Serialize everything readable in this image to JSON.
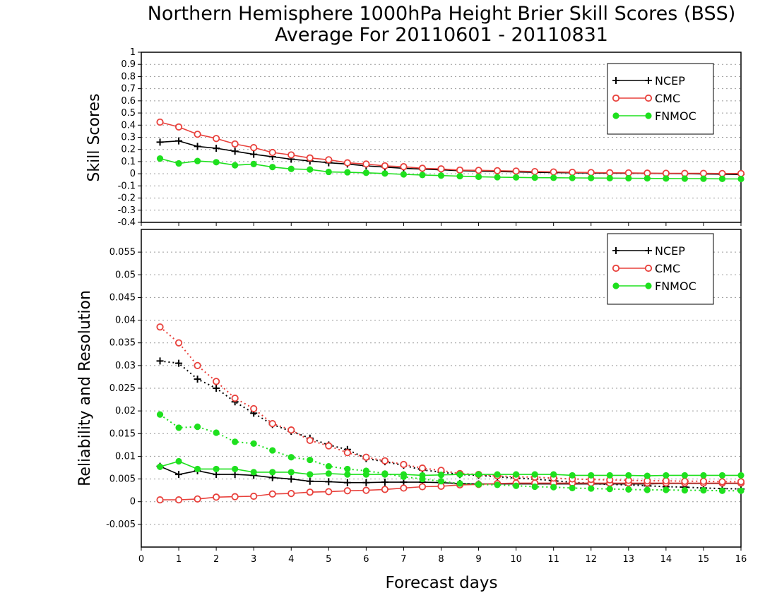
{
  "title_line1": "Northern Hemisphere 1000hPa Height Brier Skill Scores (BSS)",
  "title_line2": "Average For 20110601 - 20110831",
  "xlabel": "Forecast days",
  "colors": {
    "NCEP": "#000000",
    "CMC": "#e8413c",
    "FNMOC": "#1ee01e",
    "grid": "#9a9a9a"
  },
  "chart_data": [
    {
      "type": "line",
      "ylabel": "Skill Scores",
      "xlim": [
        0,
        16
      ],
      "ylim": [
        -0.4,
        1
      ],
      "x_ticks": [
        "0",
        "1",
        "2",
        "3",
        "4",
        "5",
        "6",
        "7",
        "8",
        "9",
        "10",
        "11",
        "12",
        "13",
        "14",
        "15",
        "16"
      ],
      "y_ticks": [
        "-0.4",
        "-0.3",
        "-0.2",
        "-0.1",
        "0",
        "0.1",
        "0.2",
        "0.3",
        "0.4",
        "0.5",
        "0.6",
        "0.7",
        "0.8",
        "0.9",
        "1"
      ],
      "legend_position": "top-right",
      "x": [
        0.5,
        1,
        1.5,
        2,
        2.5,
        3,
        3.5,
        4,
        4.5,
        5,
        5.5,
        6,
        6.5,
        7,
        7.5,
        8,
        8.5,
        9,
        9.5,
        10,
        10.5,
        11,
        11.5,
        12,
        12.5,
        13,
        13.5,
        14,
        14.5,
        15,
        15.5,
        16
      ],
      "series": [
        {
          "name": "NCEP",
          "marker": "plus",
          "style": "solid",
          "values": [
            0.26,
            0.27,
            0.225,
            0.21,
            0.185,
            0.16,
            0.14,
            0.12,
            0.105,
            0.09,
            0.08,
            0.065,
            0.055,
            0.045,
            0.038,
            0.032,
            0.025,
            0.022,
            0.018,
            0.015,
            0.012,
            0.01,
            0.008,
            0.006,
            0.005,
            0.004,
            0.003,
            0.002,
            0.0,
            -0.002,
            -0.004,
            -0.006
          ]
        },
        {
          "name": "CMC",
          "marker": "circle",
          "style": "solid",
          "values": [
            0.425,
            0.385,
            0.325,
            0.29,
            0.245,
            0.215,
            0.175,
            0.155,
            0.13,
            0.115,
            0.09,
            0.08,
            0.065,
            0.058,
            0.045,
            0.04,
            0.03,
            0.028,
            0.025,
            0.022,
            0.018,
            0.015,
            0.012,
            0.01,
            0.008,
            0.007,
            0.005,
            0.004,
            0.003,
            0.003,
            0.002,
            0.002
          ]
        },
        {
          "name": "FNMOC",
          "marker": "dot",
          "style": "solid",
          "values": [
            0.125,
            0.085,
            0.105,
            0.095,
            0.07,
            0.08,
            0.055,
            0.04,
            0.035,
            0.015,
            0.012,
            0.008,
            0.002,
            -0.005,
            -0.01,
            -0.015,
            -0.02,
            -0.025,
            -0.028,
            -0.03,
            -0.032,
            -0.033,
            -0.034,
            -0.035,
            -0.036,
            -0.037,
            -0.038,
            -0.039,
            -0.04,
            -0.041,
            -0.042,
            -0.043
          ]
        }
      ]
    },
    {
      "type": "line",
      "ylabel": "Reliability and Resolution",
      "xlim": [
        0,
        16
      ],
      "ylim": [
        -0.01,
        0.06
      ],
      "x_ticks": [
        "0",
        "1",
        "2",
        "3",
        "4",
        "5",
        "6",
        "7",
        "8",
        "9",
        "10",
        "11",
        "12",
        "13",
        "14",
        "15",
        "16"
      ],
      "y_ticks": [
        "-0.005",
        "0",
        "0.005",
        "0.01",
        "0.015",
        "0.02",
        "0.025",
        "0.03",
        "0.035",
        "0.04",
        "0.045",
        "0.05",
        "0.055"
      ],
      "legend_position": "top-right",
      "x": [
        0.5,
        1,
        1.5,
        2,
        2.5,
        3,
        3.5,
        4,
        4.5,
        5,
        5.5,
        6,
        6.5,
        7,
        7.5,
        8,
        8.5,
        9,
        9.5,
        10,
        10.5,
        11,
        11.5,
        12,
        12.5,
        13,
        13.5,
        14,
        14.5,
        15,
        15.5,
        16
      ],
      "series": [
        {
          "name": "NCEP",
          "marker": "plus",
          "style": "solid",
          "values": [
            0.0078,
            0.006,
            0.0068,
            0.006,
            0.006,
            0.0058,
            0.0053,
            0.005,
            0.0045,
            0.0044,
            0.0042,
            0.0042,
            0.0043,
            0.0043,
            0.0043,
            0.0042,
            0.004,
            0.0039,
            0.0039,
            0.0039,
            0.0039,
            0.0039,
            0.0039,
            0.0039,
            0.0039,
            0.0039,
            0.0039,
            0.004,
            0.004,
            0.004,
            0.004,
            0.004
          ]
        },
        {
          "name": "NCEP",
          "marker": "plus",
          "style": "dotted",
          "values": [
            0.031,
            0.0305,
            0.027,
            0.025,
            0.022,
            0.0195,
            0.017,
            0.0155,
            0.014,
            0.0125,
            0.0115,
            0.0095,
            0.0088,
            0.008,
            0.007,
            0.0065,
            0.006,
            0.0058,
            0.0055,
            0.0052,
            0.005,
            0.0046,
            0.0043,
            0.004,
            0.0038,
            0.0037,
            0.0035,
            0.0033,
            0.0032,
            0.003,
            0.0029,
            0.0028
          ]
        },
        {
          "name": "CMC",
          "marker": "circle",
          "style": "solid",
          "values": [
            0.0004,
            0.0004,
            0.0006,
            0.001,
            0.0011,
            0.0012,
            0.0017,
            0.0018,
            0.0021,
            0.0022,
            0.0024,
            0.0025,
            0.0027,
            0.003,
            0.0033,
            0.0034,
            0.0037,
            0.0038,
            0.004,
            0.0041,
            0.0041,
            0.0041,
            0.0041,
            0.0041,
            0.0041,
            0.0041,
            0.0041,
            0.0041,
            0.0041,
            0.0041,
            0.0041,
            0.0041
          ]
        },
        {
          "name": "CMC",
          "marker": "circle",
          "style": "dotted",
          "values": [
            0.0385,
            0.035,
            0.03,
            0.0265,
            0.0228,
            0.0205,
            0.0172,
            0.0158,
            0.0135,
            0.0123,
            0.0108,
            0.0098,
            0.009,
            0.0082,
            0.0074,
            0.0069,
            0.0062,
            0.006,
            0.0057,
            0.0055,
            0.0054,
            0.0052,
            0.005,
            0.0049,
            0.0048,
            0.0047,
            0.0046,
            0.0046,
            0.0045,
            0.0045,
            0.0044,
            0.0044
          ]
        },
        {
          "name": "FNMOC",
          "marker": "dot",
          "style": "solid",
          "values": [
            0.0077,
            0.0089,
            0.0072,
            0.0072,
            0.0072,
            0.0065,
            0.0065,
            0.0065,
            0.006,
            0.0062,
            0.006,
            0.006,
            0.006,
            0.006,
            0.0058,
            0.0059,
            0.006,
            0.006,
            0.006,
            0.006,
            0.006,
            0.006,
            0.0058,
            0.0058,
            0.0058,
            0.0058,
            0.0057,
            0.0058,
            0.0058,
            0.0058,
            0.0058,
            0.0058
          ]
        },
        {
          "name": "FNMOC",
          "marker": "dot",
          "style": "dotted",
          "values": [
            0.0192,
            0.0163,
            0.0165,
            0.0152,
            0.0132,
            0.0128,
            0.0113,
            0.0098,
            0.0092,
            0.0078,
            0.0072,
            0.0068,
            0.0062,
            0.0055,
            0.005,
            0.0045,
            0.004,
            0.0038,
            0.0037,
            0.0035,
            0.0033,
            0.0032,
            0.003,
            0.0029,
            0.0028,
            0.0027,
            0.0026,
            0.0026,
            0.0025,
            0.0025,
            0.0024,
            0.0024
          ]
        }
      ]
    }
  ]
}
